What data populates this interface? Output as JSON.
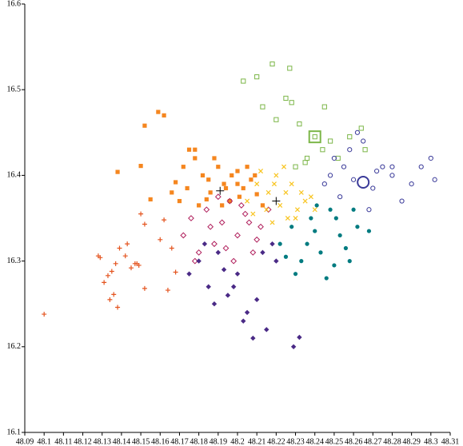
{
  "chart_data": {
    "type": "scatter",
    "xlim": [
      48.09,
      48.31
    ],
    "xticks": [
      48.09,
      48.1,
      48.11,
      48.12,
      48.13,
      48.14,
      48.15,
      48.16,
      48.17,
      48.18,
      48.19,
      48.2,
      48.21,
      48.22,
      48.23,
      48.24,
      48.25,
      48.26,
      48.27,
      48.28,
      48.29,
      48.3,
      48.31
    ],
    "ylim": [
      16.1,
      16.6
    ],
    "yticks": [
      16.1,
      16.2,
      16.3,
      16.4,
      16.5,
      16.6
    ],
    "grid": false,
    "series": [
      {
        "color": "#e4541f",
        "marker": "plus",
        "x": [
          48.1,
          48.128,
          48.129,
          48.137,
          48.136,
          48.138,
          48.133,
          48.135,
          48.147,
          48.15,
          48.152,
          48.162,
          48.16,
          48.166,
          48.168,
          48.164,
          48.152,
          48.143,
          48.139,
          48.142,
          48.145,
          48.148,
          48.149,
          48.131,
          48.134
        ],
        "y": [
          16.238,
          16.306,
          16.304,
          16.297,
          16.261,
          16.246,
          16.283,
          16.288,
          16.297,
          16.355,
          16.343,
          16.348,
          16.325,
          16.315,
          16.287,
          16.266,
          16.268,
          16.32,
          16.315,
          16.306,
          16.292,
          16.297,
          16.295,
          16.275,
          16.255
        ]
      },
      {
        "color": "#f5861f",
        "marker": "square",
        "x": [
          48.152,
          48.159,
          48.162,
          48.138,
          48.15,
          48.155,
          48.168,
          48.175,
          48.178,
          48.182,
          48.186,
          48.19,
          48.193,
          48.196,
          48.2,
          48.203,
          48.207,
          48.21,
          48.213,
          48.17,
          48.174,
          48.18,
          48.185,
          48.188,
          48.197,
          48.201,
          48.205,
          48.172,
          48.166,
          48.194,
          48.184,
          48.2,
          48.209,
          48.178,
          48.192
        ],
        "y": [
          16.458,
          16.474,
          16.47,
          16.404,
          16.411,
          16.372,
          16.392,
          16.43,
          16.42,
          16.4,
          16.38,
          16.41,
          16.39,
          16.37,
          16.405,
          16.385,
          16.395,
          16.378,
          16.365,
          16.37,
          16.385,
          16.365,
          16.395,
          16.42,
          16.4,
          16.375,
          16.41,
          16.41,
          16.38,
          16.385,
          16.372,
          16.39,
          16.4,
          16.43,
          16.365
        ]
      },
      {
        "color": "#b01f5c",
        "marker": "diamond-open",
        "x": [
          48.172,
          48.176,
          48.18,
          48.184,
          48.188,
          48.192,
          48.196,
          48.2,
          48.204,
          48.208,
          48.212,
          48.216,
          48.178,
          48.186,
          48.194,
          48.202,
          48.21,
          48.19,
          48.198,
          48.206
        ],
        "y": [
          16.33,
          16.35,
          16.31,
          16.36,
          16.32,
          16.345,
          16.37,
          16.33,
          16.355,
          16.31,
          16.34,
          16.36,
          16.3,
          16.34,
          16.315,
          16.365,
          16.325,
          16.375,
          16.3,
          16.345
        ]
      },
      {
        "color": "#4a2a86",
        "marker": "diamond",
        "x": [
          48.175,
          48.18,
          48.185,
          48.19,
          48.195,
          48.2,
          48.205,
          48.21,
          48.215,
          48.22,
          48.183,
          48.188,
          48.193,
          48.198,
          48.203,
          48.208,
          48.213,
          48.218,
          48.229,
          48.232
        ],
        "y": [
          16.285,
          16.3,
          16.27,
          16.31,
          16.26,
          16.285,
          16.24,
          16.255,
          16.22,
          16.3,
          16.32,
          16.25,
          16.29,
          16.27,
          16.23,
          16.21,
          16.31,
          16.32,
          16.2,
          16.211
        ]
      },
      {
        "color": "#f8c41f",
        "marker": "x",
        "x": [
          48.205,
          48.21,
          48.215,
          48.22,
          48.225,
          48.23,
          48.235,
          48.24,
          48.212,
          48.218,
          48.222,
          48.228,
          48.233,
          48.208,
          48.216,
          48.224,
          48.231,
          48.238,
          48.219,
          48.226
        ],
        "y": [
          16.37,
          16.39,
          16.36,
          16.4,
          16.38,
          16.35,
          16.37,
          16.36,
          16.405,
          16.345,
          16.365,
          16.39,
          16.38,
          16.355,
          16.38,
          16.41,
          16.36,
          16.375,
          16.39,
          16.35
        ]
      },
      {
        "color": "#007b80",
        "marker": "circle",
        "x": [
          48.222,
          48.228,
          48.233,
          48.238,
          48.243,
          48.248,
          48.253,
          48.258,
          48.262,
          48.23,
          48.236,
          48.241,
          48.246,
          48.251,
          48.256,
          48.225,
          48.24,
          48.25,
          48.26,
          48.268
        ],
        "y": [
          16.32,
          16.34,
          16.3,
          16.35,
          16.31,
          16.36,
          16.33,
          16.3,
          16.34,
          16.285,
          16.32,
          16.365,
          16.28,
          16.35,
          16.315,
          16.305,
          16.335,
          16.295,
          16.36,
          16.335
        ]
      },
      {
        "color": "#7cb648",
        "marker": "square-open",
        "x": [
          48.203,
          48.21,
          48.213,
          48.218,
          48.225,
          48.228,
          48.232,
          48.236,
          48.24,
          48.244,
          48.248,
          48.252,
          48.258,
          48.264,
          48.266,
          48.23,
          48.235,
          48.245,
          48.22,
          48.227
        ],
        "y": [
          16.51,
          16.515,
          16.48,
          16.53,
          16.49,
          16.485,
          16.46,
          16.42,
          16.445,
          16.43,
          16.44,
          16.42,
          16.445,
          16.455,
          16.43,
          16.41,
          16.415,
          16.48,
          16.465,
          16.525
        ]
      },
      {
        "color": "#3a3a99",
        "marker": "circle-open",
        "x": [
          48.245,
          48.25,
          48.255,
          48.26,
          48.265,
          48.27,
          48.275,
          48.28,
          48.285,
          48.29,
          48.295,
          48.3,
          48.302,
          48.258,
          48.268,
          48.262,
          48.253,
          48.28,
          48.272,
          48.248
        ],
        "y": [
          16.39,
          16.42,
          16.41,
          16.395,
          16.44,
          16.385,
          16.41,
          16.4,
          16.37,
          16.39,
          16.41,
          16.42,
          16.395,
          16.43,
          16.36,
          16.45,
          16.375,
          16.41,
          16.405,
          16.4
        ]
      },
      {
        "color": "#7cb648",
        "marker": "square-open-large",
        "x": [
          48.24
        ],
        "y": [
          16.445
        ]
      },
      {
        "color": "#3a3a99",
        "marker": "circle-open-large",
        "x": [
          48.265
        ],
        "y": [
          16.392
        ]
      },
      {
        "color": "#000000",
        "marker": "plus-large",
        "x": [
          48.191,
          48.22
        ],
        "y": [
          16.382,
          16.37
        ]
      }
    ]
  }
}
